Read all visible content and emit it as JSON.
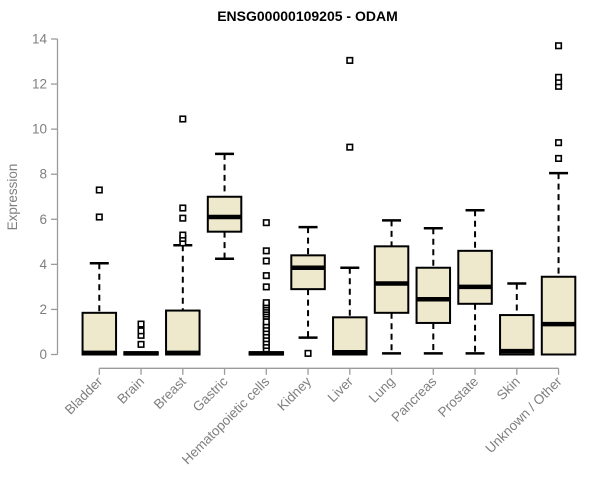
{
  "chart_data": {
    "type": "box",
    "title": "ENSG00000109205 - ODAM",
    "xlabel": "",
    "ylabel": "Expression",
    "ylim": [
      0,
      14
    ],
    "yticks": [
      0,
      2,
      4,
      6,
      8,
      10,
      12,
      14
    ],
    "grid": false,
    "legend": "none",
    "categories": [
      "Bladder",
      "Brain",
      "Breast",
      "Gastric",
      "Hematopoietic cells",
      "Kidney",
      "Liver",
      "Lung",
      "Pancreas",
      "Prostate",
      "Skin",
      "Unknown / Other"
    ],
    "boxes": [
      {
        "category": "Bladder",
        "whisker_low": 0,
        "q1": 0,
        "median": 0.07,
        "q3": 1.85,
        "whisker_high": 4.05,
        "outliers": [
          6.1,
          7.3
        ]
      },
      {
        "category": "Brain",
        "whisker_low": 0,
        "q1": 0,
        "median": 0.05,
        "q3": 0.1,
        "whisker_high": 0.1,
        "outliers": [
          0.45,
          0.85,
          1.05,
          1.35
        ]
      },
      {
        "category": "Breast",
        "whisker_low": 0,
        "q1": 0,
        "median": 0.07,
        "q3": 1.95,
        "whisker_high": 4.85,
        "outliers": [
          4.95,
          5.15,
          5.3,
          6.05,
          6.5,
          10.45
        ]
      },
      {
        "category": "Gastric",
        "whisker_low": 4.25,
        "q1": 5.45,
        "median": 6.1,
        "q3": 7.0,
        "whisker_high": 8.9,
        "outliers": []
      },
      {
        "category": "Hematopoietic cells",
        "whisker_low": 0,
        "q1": 0,
        "median": 0.05,
        "q3": 0.1,
        "whisker_high": 0.1,
        "outliers": [
          0.25,
          0.4,
          0.55,
          0.7,
          0.85,
          1.0,
          1.15,
          1.3,
          1.45,
          1.7,
          1.8,
          1.9,
          2.0,
          2.1,
          2.2,
          2.3,
          3.0,
          3.5,
          4.15,
          4.6,
          5.85
        ]
      },
      {
        "category": "Kidney",
        "whisker_low": 0.75,
        "q1": 2.9,
        "median": 3.85,
        "q3": 4.4,
        "whisker_high": 5.65,
        "outliers": [
          0.05
        ]
      },
      {
        "category": "Liver",
        "whisker_low": 0,
        "q1": 0,
        "median": 0.1,
        "q3": 1.65,
        "whisker_high": 3.85,
        "outliers": [
          9.2,
          13.05
        ]
      },
      {
        "category": "Lung",
        "whisker_low": 0.05,
        "q1": 1.85,
        "median": 3.15,
        "q3": 4.8,
        "whisker_high": 5.95,
        "outliers": []
      },
      {
        "category": "Pancreas",
        "whisker_low": 0.05,
        "q1": 1.4,
        "median": 2.45,
        "q3": 3.85,
        "whisker_high": 5.6,
        "outliers": []
      },
      {
        "category": "Prostate",
        "whisker_low": 0.05,
        "q1": 2.25,
        "median": 3.0,
        "q3": 4.6,
        "whisker_high": 6.4,
        "outliers": []
      },
      {
        "category": "Skin",
        "whisker_low": 0,
        "q1": 0,
        "median": 0.15,
        "q3": 1.75,
        "whisker_high": 3.15,
        "outliers": []
      },
      {
        "category": "Unknown / Other",
        "whisker_low": 0,
        "q1": 0,
        "median": 1.35,
        "q3": 3.45,
        "whisker_high": 8.05,
        "outliers": [
          8.7,
          9.4,
          11.9,
          12.1,
          12.3,
          13.7
        ]
      }
    ],
    "colors": {
      "box_fill": "#EEE8CD",
      "box_stroke": "#000000",
      "median": "#000000",
      "whisker": "#000000",
      "outlier_fill": "#ffffff",
      "outlier_stroke": "#000000",
      "axis_line": "#9b9b9b",
      "tick_label": "#7f7f7f",
      "title": "#000000"
    }
  }
}
